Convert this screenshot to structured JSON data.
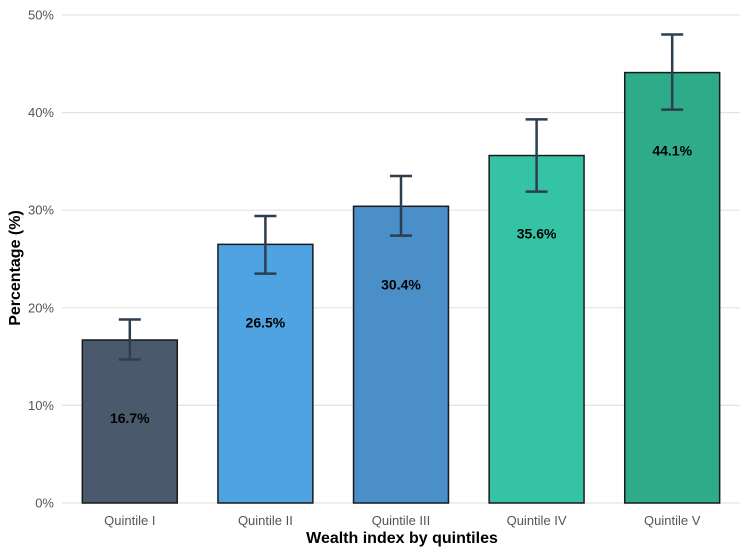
{
  "chart_data": {
    "type": "bar",
    "title": "",
    "xlabel": "Wealth index by quintiles",
    "ylabel": "Percentage (%)",
    "categories": [
      "Quintile I",
      "Quintile II",
      "Quintile III",
      "Quintile IV",
      "Quintile V"
    ],
    "values": [
      16.7,
      26.5,
      30.4,
      35.6,
      44.1
    ],
    "value_labels": [
      "16.7%",
      "26.5%",
      "30.4%",
      "35.6%",
      "44.1%"
    ],
    "error_low": [
      14.7,
      23.5,
      27.4,
      31.9,
      40.3
    ],
    "error_high": [
      18.8,
      29.4,
      33.5,
      39.3,
      48.0
    ],
    "colors": [
      "#4a5a6c",
      "#4fa3e3",
      "#4a8fc8",
      "#34c4a5",
      "#2eab89"
    ],
    "error_color": "#2c3e50",
    "ylim": [
      0,
      50
    ],
    "yticks": [
      0,
      10,
      20,
      30,
      40,
      50
    ],
    "ytick_labels": [
      "0%",
      "10%",
      "20%",
      "30%",
      "40%",
      "50%"
    ],
    "grid": "horizontal",
    "legend": "none"
  }
}
